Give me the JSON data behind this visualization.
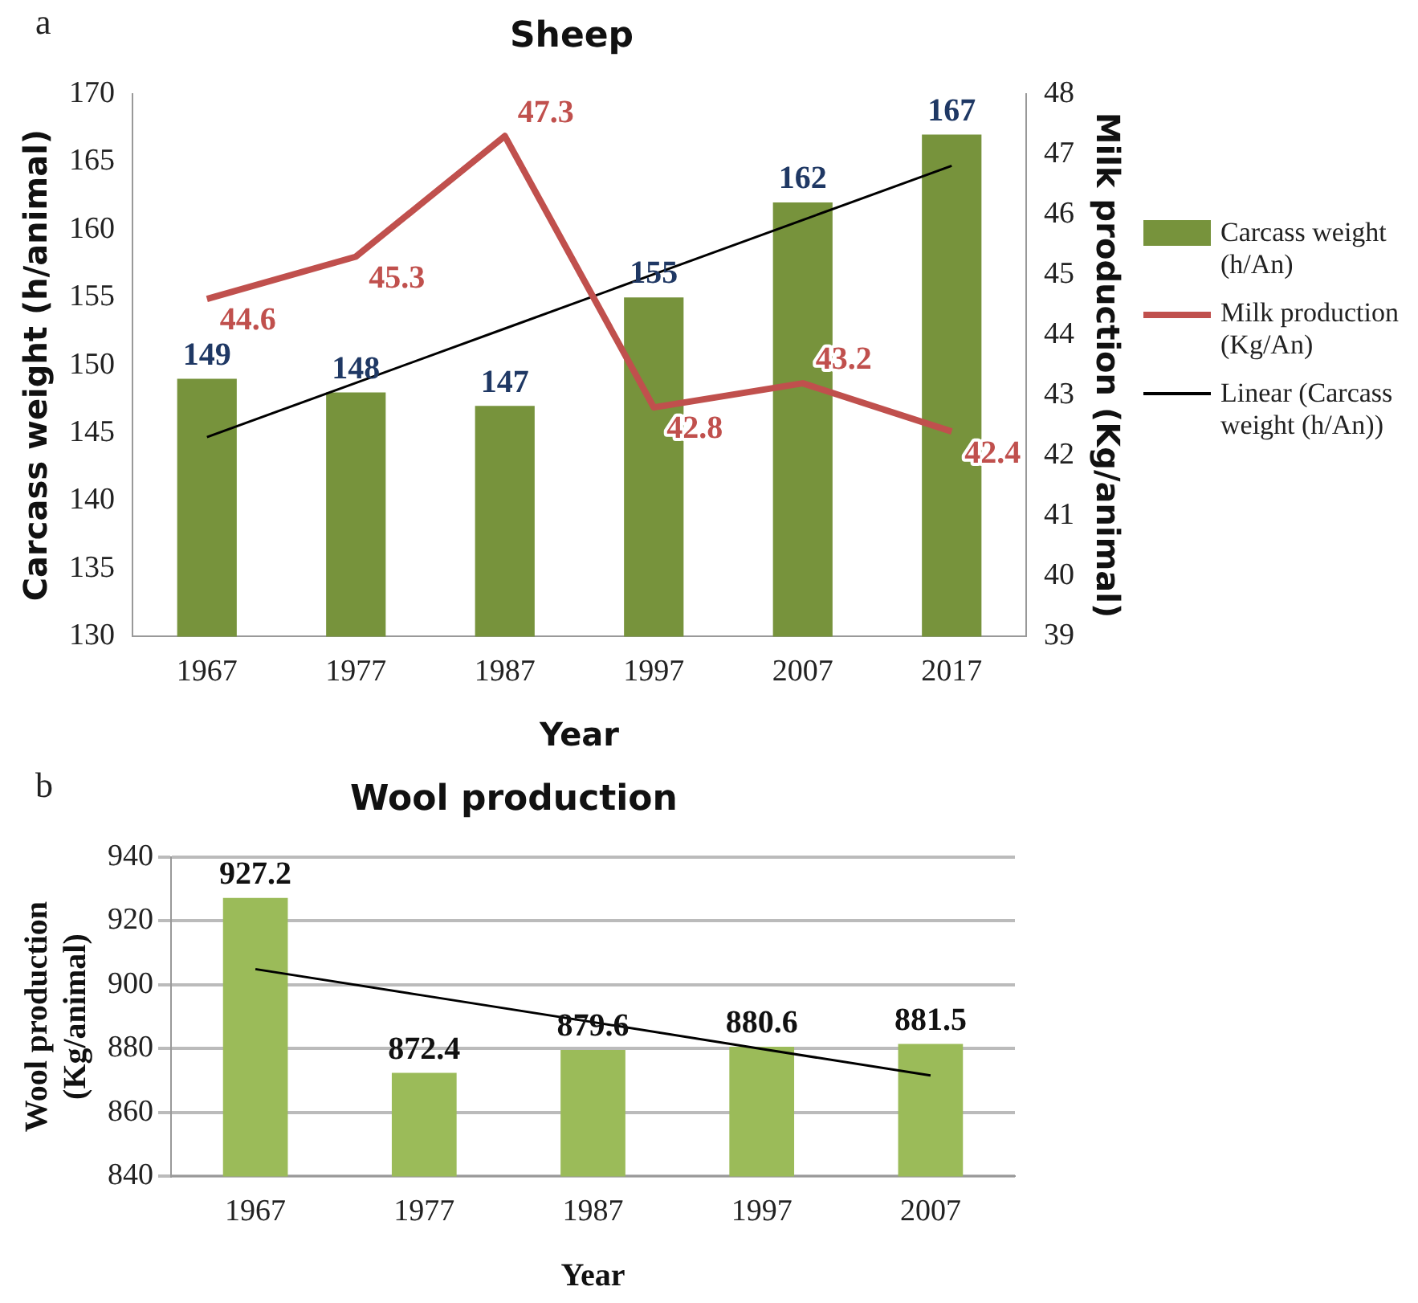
{
  "chart_data": [
    {
      "type": "bar",
      "title": "Sheep",
      "xlabel": "Year",
      "ylabel": "Carcass weight (h/animal)",
      "y2label": "Milk production (Kg/animal)",
      "categories": [
        "1967",
        "1977",
        "1987",
        "1997",
        "2007",
        "2017"
      ],
      "series": [
        {
          "name": "Carcass weight (h/An)",
          "color": "#77933c",
          "values": [
            149,
            148,
            147,
            155,
            162,
            167
          ],
          "value_labels": [
            "149",
            "148",
            "147",
            "155",
            "162",
            "167"
          ]
        },
        {
          "name": "Milk production (Kg/An)",
          "type": "line",
          "axis": "y2",
          "color": "#c0504d",
          "values": [
            44.6,
            45.3,
            47.3,
            42.8,
            43.2,
            42.4
          ],
          "value_labels": [
            "44.6",
            "45.3",
            "47.3",
            "42.8",
            "43.2",
            "42.4"
          ]
        },
        {
          "name": "Linear (Carcass weight (h/An))",
          "type": "line",
          "color": "#000000",
          "values": [
            144.7,
            148.7,
            152.7,
            156.7,
            160.7,
            164.7
          ]
        }
      ],
      "ylim": [
        130,
        170
      ],
      "yticks": [
        130,
        135,
        140,
        145,
        150,
        155,
        160,
        165,
        170
      ],
      "y2lim": [
        39,
        48
      ],
      "y2ticks": [
        39,
        40,
        41,
        42,
        43,
        44,
        45,
        46,
        47,
        48
      ],
      "grid": false,
      "legend": "right",
      "marker": "none",
      "annotations": [
        "a"
      ]
    },
    {
      "type": "bar",
      "title": "Wool production",
      "xlabel": "Year",
      "ylabel": "Wool production (Kg/animal)",
      "categories": [
        "1967",
        "1977",
        "1987",
        "1997",
        "2007"
      ],
      "series": [
        {
          "color": "#9bbb59",
          "values": [
            927.2,
            872.4,
            879.6,
            880.6,
            881.5
          ],
          "value_labels": [
            "927.2",
            "872.4",
            "879.6",
            "880.6",
            "881.5"
          ]
        },
        {
          "type": "line",
          "color": "#000000",
          "values": [
            904.9,
            896.6,
            888.3,
            879.9,
            871.6
          ]
        }
      ],
      "ylim": [
        840,
        940
      ],
      "yticks": [
        840,
        860,
        880,
        900,
        920,
        940
      ],
      "grid": "y",
      "legend": false,
      "marker": "none",
      "annotations": [
        "b"
      ]
    }
  ]
}
